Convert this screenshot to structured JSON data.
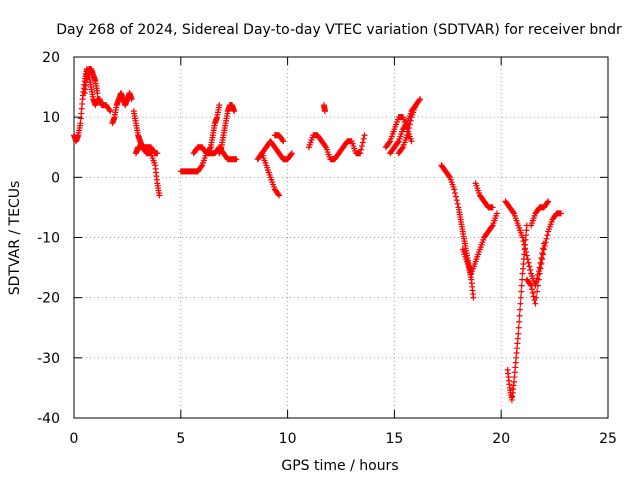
{
  "chart_data": {
    "type": "scatter",
    "title": "Day 268 of 2024, Sidereal Day-to-day VTEC variation (SDTVAR) for receiver bndr",
    "xlabel": "GPS time / hours",
    "ylabel": "SDTVAR / TECUs",
    "xlim": [
      0,
      25
    ],
    "ylim": [
      -40,
      20
    ],
    "x_ticks": [
      0,
      5,
      10,
      15,
      20,
      25
    ],
    "y_ticks": [
      -40,
      -30,
      -20,
      -10,
      0,
      10,
      20
    ],
    "grid": true,
    "marker": "+",
    "series": [
      {
        "name": "SDTVAR",
        "color": "#ff0000",
        "segments": [
          {
            "x": [
              0.0,
              0.1,
              0.2,
              0.3,
              0.4,
              0.5,
              0.6,
              0.7,
              0.8,
              0.9,
              1.0,
              1.1,
              1.2,
              1.3,
              1.5,
              1.7
            ],
            "y": [
              7,
              6,
              7,
              9,
              13,
              16,
              18,
              17,
              15,
              13,
              12,
              13,
              13,
              12,
              12,
              11
            ]
          },
          {
            "x": [
              0.5,
              0.6,
              0.7,
              0.8,
              0.9,
              1.0,
              1.1
            ],
            "y": [
              14,
              17,
              18,
              18,
              17,
              16,
              14
            ]
          },
          {
            "x": [
              1.8,
              1.9,
              2.0,
              2.1,
              2.2,
              2.3,
              2.4,
              2.5,
              2.6,
              2.7
            ],
            "y": [
              9,
              10,
              12,
              13,
              14,
              13,
              12,
              13,
              14,
              13
            ]
          },
          {
            "x": [
              2.8,
              2.9,
              3.0,
              3.1,
              3.2,
              3.4,
              3.6,
              3.8,
              3.9,
              4.0
            ],
            "y": [
              11,
              9,
              7,
              6,
              5,
              4,
              4,
              2,
              -1,
              -3
            ]
          },
          {
            "x": [
              2.9,
              3.0,
              3.2,
              3.4,
              3.6,
              3.8,
              3.9
            ],
            "y": [
              4,
              5,
              5,
              5,
              5,
              4,
              4
            ]
          },
          {
            "x": [
              5.0,
              5.2,
              5.4,
              5.6,
              5.8,
              6.0,
              6.2,
              6.4,
              6.6,
              6.8,
              7.0,
              7.2,
              7.4,
              7.6
            ],
            "y": [
              1,
              1,
              1,
              1,
              1,
              2,
              4,
              4,
              4,
              5,
              4,
              3,
              3,
              3
            ]
          },
          {
            "x": [
              5.6,
              5.8,
              6.0,
              6.2,
              6.4
            ],
            "y": [
              4,
              5,
              5,
              4,
              5
            ]
          },
          {
            "x": [
              6.4,
              6.5,
              6.6,
              6.7,
              6.8
            ],
            "y": [
              5,
              7,
              9,
              10,
              12
            ]
          },
          {
            "x": [
              6.8,
              6.9,
              7.0,
              7.1,
              7.2,
              7.3,
              7.4,
              7.5
            ],
            "y": [
              4,
              5,
              7,
              9,
              11,
              12,
              12,
              11
            ]
          },
          {
            "x": [
              8.6,
              8.8,
              9.0,
              9.2,
              9.4,
              9.6,
              9.8,
              10.0,
              10.2
            ],
            "y": [
              3,
              4,
              5,
              6,
              5,
              4,
              3,
              3,
              4
            ]
          },
          {
            "x": [
              8.8,
              9.0,
              9.2,
              9.4,
              9.6
            ],
            "y": [
              4,
              2,
              0,
              -2,
              -3
            ]
          },
          {
            "x": [
              9.4,
              9.6,
              9.8
            ],
            "y": [
              7,
              7,
              6
            ]
          },
          {
            "x": [
              11.0,
              11.2,
              11.4,
              11.6,
              11.8,
              12.0,
              12.2,
              12.4,
              12.6,
              12.8,
              13.0,
              13.2,
              13.4,
              13.6
            ],
            "y": [
              5,
              7,
              7,
              6,
              5,
              3,
              3,
              4,
              5,
              6,
              6,
              4,
              4,
              7
            ]
          },
          {
            "x": [
              11.7,
              11.75
            ],
            "y": [
              12,
              11
            ]
          },
          {
            "x": [
              14.8,
              15.0,
              15.2,
              15.4,
              15.6,
              15.8,
              16.0,
              16.2
            ],
            "y": [
              4,
              5,
              6,
              8,
              9,
              11,
              12,
              13
            ]
          },
          {
            "x": [
              14.6,
              14.8,
              15.0,
              15.2,
              15.4,
              15.6,
              15.8
            ],
            "y": [
              5,
              6,
              8,
              10,
              10,
              8,
              6
            ]
          },
          {
            "x": [
              15.2,
              15.4,
              15.6,
              15.8,
              16.0
            ],
            "y": [
              4,
              5,
              7,
              10,
              12
            ]
          },
          {
            "x": [
              17.2,
              17.4,
              17.6,
              17.8,
              18.0,
              18.1,
              18.2,
              18.3,
              18.4,
              18.5,
              18.6,
              18.7
            ],
            "y": [
              2,
              1,
              0,
              -2,
              -5,
              -7,
              -9,
              -11,
              -13,
              -15,
              -17,
              -20
            ]
          },
          {
            "x": [
              18.2,
              18.4,
              18.6,
              18.8,
              19.0,
              19.2,
              19.4,
              19.6,
              19.8
            ],
            "y": [
              -12,
              -14,
              -16,
              -14,
              -12,
              -10,
              -9,
              -8,
              -6
            ]
          },
          {
            "x": [
              18.8,
              19.0,
              19.2,
              19.4,
              19.6
            ],
            "y": [
              -1,
              -3,
              -4,
              -5,
              -5
            ]
          },
          {
            "x": [
              20.3,
              20.4,
              20.5,
              20.6,
              20.7,
              20.8,
              20.9,
              21.0,
              21.1,
              21.2
            ],
            "y": [
              -32,
              -35,
              -37,
              -34,
              -30,
              -26,
              -21,
              -16,
              -12,
              -8
            ]
          },
          {
            "x": [
              20.2,
              20.4,
              20.6,
              20.8,
              21.0,
              21.2,
              21.4,
              21.6,
              21.8,
              22.0
            ],
            "y": [
              -4,
              -5,
              -6,
              -8,
              -10,
              -13,
              -16,
              -18,
              -15,
              -11
            ]
          },
          {
            "x": [
              21.2,
              21.4,
              21.6,
              21.8,
              22.0,
              22.2,
              22.4,
              22.6,
              22.8
            ],
            "y": [
              -17,
              -18,
              -21,
              -16,
              -12,
              -9,
              -7,
              -6,
              -6
            ]
          },
          {
            "x": [
              21.4,
              21.6,
              21.8,
              22.0,
              22.2
            ],
            "y": [
              -8,
              -6,
              -5,
              -5,
              -4
            ]
          }
        ]
      }
    ]
  }
}
